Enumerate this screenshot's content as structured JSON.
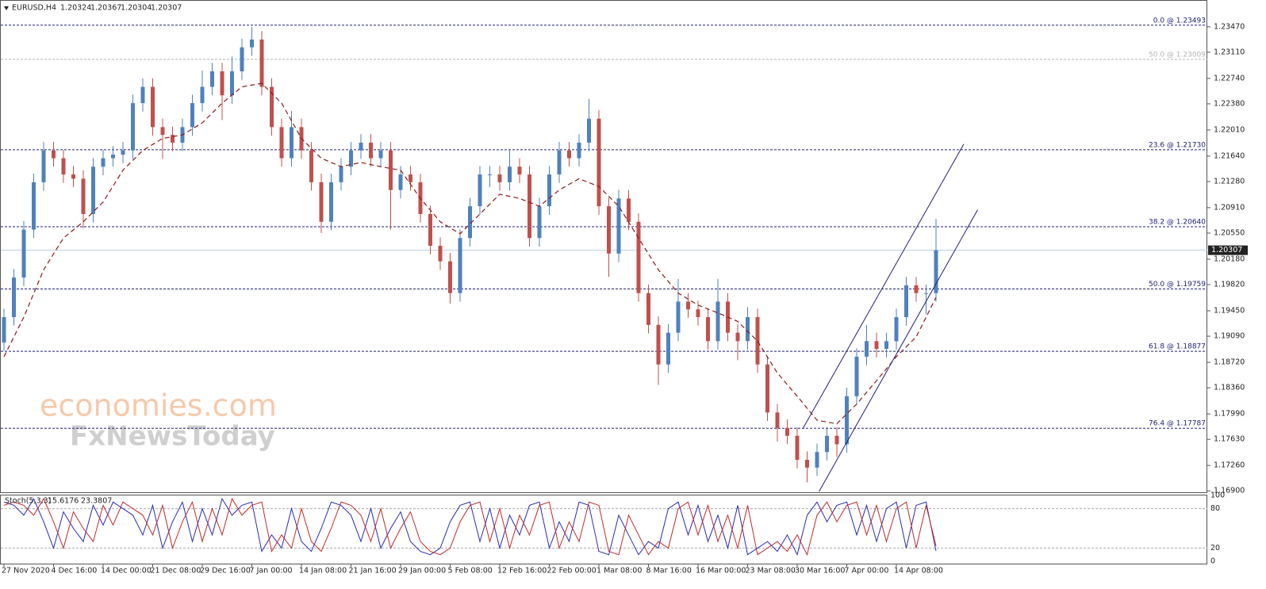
{
  "chart_data": {
    "type": "candlestick",
    "symbol": "EURUSD,H4",
    "quote": [
      1.20324,
      1.20367,
      1.20304,
      1.20307
    ],
    "up_color": "#4f81bd",
    "down_color": "#c0504d",
    "open": [
      1.19,
      1.1936,
      1.1992,
      1.206,
      1.2127,
      1.2172,
      1.2161,
      1.2138,
      1.2132,
      1.2082,
      1.2149,
      1.2161,
      1.2166,
      1.2172,
      1.2239,
      1.2262,
      1.2205,
      1.2194,
      1.2183,
      1.2205,
      1.2239,
      1.2262,
      1.2284,
      1.225,
      1.2284,
      1.2318,
      1.2329,
      1.2262,
      1.2205,
      1.2161,
      1.2205,
      1.2172,
      1.2127,
      1.2071,
      1.2127,
      1.2149,
      1.2172,
      1.2183,
      1.2161,
      1.2172,
      1.2116,
      1.2138,
      1.2127,
      1.2082,
      1.2037,
      1.2015,
      1.197,
      1.2048,
      1.2093,
      1.2138,
      1.2138,
      1.2127,
      1.2149,
      1.2138,
      1.2048,
      1.2093,
      1.2138,
      1.2172,
      1.2161,
      1.2183,
      1.2217,
      1.2093,
      1.2026,
      1.2104,
      1.2071,
      1.197,
      1.1925,
      1.1869,
      1.1914,
      1.1958,
      1.1947,
      1.1936,
      1.1902,
      1.1958,
      1.1914,
      1.1902,
      1.1936,
      1.1869,
      1.1801,
      1.1779,
      1.1768,
      1.1734,
      1.1723,
      1.1745,
      1.1768,
      1.1756,
      1.1824,
      1.188,
      1.1902,
      1.1891,
      1.1902,
      1.1936,
      1.1981,
      1.197,
      1.197
    ],
    "high": [
      1.1948,
      1.2004,
      1.2072,
      1.2139,
      1.2184,
      1.2184,
      1.2173,
      1.215,
      1.2144,
      1.2161,
      1.2173,
      1.2178,
      1.2184,
      1.2251,
      1.2274,
      1.2274,
      1.2217,
      1.2206,
      1.2217,
      1.2251,
      1.2285,
      1.2296,
      1.2296,
      1.2305,
      1.233,
      1.2347,
      1.2341,
      1.2274,
      1.2217,
      1.2228,
      1.2217,
      1.2184,
      1.2139,
      1.2139,
      1.2161,
      1.2184,
      1.2195,
      1.2195,
      1.2184,
      1.2184,
      1.215,
      1.215,
      1.2139,
      1.2094,
      1.2049,
      1.2027,
      1.206,
      1.2105,
      1.215,
      1.215,
      1.215,
      1.2172,
      1.2161,
      1.215,
      1.2105,
      1.215,
      1.2184,
      1.2184,
      1.2195,
      1.2245,
      1.2229,
      1.2105,
      1.2116,
      1.2116,
      1.2083,
      1.1982,
      1.1937,
      1.1926,
      1.199,
      1.197,
      1.1959,
      1.1948,
      1.199,
      1.197,
      1.1926,
      1.195,
      1.1948,
      1.1881,
      1.1813,
      1.1791,
      1.178,
      1.1746,
      1.1757,
      1.178,
      1.178,
      1.1836,
      1.1892,
      1.1925,
      1.1914,
      1.1914,
      1.1948,
      1.1993,
      1.1993,
      1.1982,
      1.2075
    ],
    "low": [
      1.1888,
      1.1924,
      1.198,
      1.2048,
      1.2115,
      1.2149,
      1.2126,
      1.212,
      1.2062,
      1.207,
      1.2137,
      1.2149,
      1.2154,
      1.216,
      1.2227,
      1.2193,
      1.216,
      1.2171,
      1.2171,
      1.2193,
      1.2227,
      1.225,
      1.2215,
      1.2238,
      1.2272,
      1.2306,
      1.225,
      1.2193,
      1.2149,
      1.2149,
      1.216,
      1.2115,
      1.2055,
      1.2059,
      1.2115,
      1.2137,
      1.216,
      1.2149,
      1.2149,
      1.206,
      1.2104,
      1.2115,
      1.207,
      1.2025,
      1.2003,
      1.1955,
      1.1958,
      1.2036,
      1.2081,
      1.212,
      1.2115,
      1.2115,
      1.2126,
      1.2036,
      1.2036,
      1.2081,
      1.2126,
      1.2149,
      1.2149,
      1.2171,
      1.2081,
      1.1993,
      1.2014,
      1.2059,
      1.1958,
      1.1913,
      1.184,
      1.1857,
      1.1902,
      1.1935,
      1.1924,
      1.189,
      1.189,
      1.1902,
      1.1875,
      1.189,
      1.1857,
      1.1789,
      1.176,
      1.1756,
      1.1722,
      1.1702,
      1.1711,
      1.1733,
      1.1738,
      1.1744,
      1.1812,
      1.1868,
      1.1879,
      1.1879,
      1.189,
      1.1924,
      1.1958,
      1.194,
      1.1958
    ],
    "close": [
      1.1936,
      1.1992,
      1.206,
      1.2127,
      1.2172,
      1.2161,
      1.2138,
      1.2132,
      1.2082,
      1.2149,
      1.2161,
      1.2166,
      1.2172,
      1.2239,
      1.2262,
      1.2205,
      1.2194,
      1.2183,
      1.2205,
      1.2239,
      1.2262,
      1.2284,
      1.225,
      1.2284,
      1.2318,
      1.2329,
      1.2262,
      1.2205,
      1.2161,
      1.2205,
      1.2172,
      1.2127,
      1.2071,
      1.2127,
      1.2149,
      1.2172,
      1.2183,
      1.2161,
      1.2172,
      1.2116,
      1.2138,
      1.2127,
      1.2082,
      1.2037,
      1.2015,
      1.197,
      1.2048,
      1.2093,
      1.2138,
      1.2138,
      1.2127,
      1.2149,
      1.2138,
      1.2048,
      1.2093,
      1.2138,
      1.2172,
      1.2161,
      1.2183,
      1.2217,
      1.2093,
      1.2026,
      1.2104,
      1.2071,
      1.197,
      1.1925,
      1.1869,
      1.1914,
      1.1958,
      1.1947,
      1.1936,
      1.1902,
      1.1958,
      1.1914,
      1.1902,
      1.1936,
      1.1869,
      1.1801,
      1.1779,
      1.1768,
      1.1734,
      1.1723,
      1.1745,
      1.1768,
      1.1756,
      1.1824,
      1.188,
      1.1902,
      1.1891,
      1.1902,
      1.1936,
      1.1981,
      1.197,
      1.197,
      1.20307
    ],
    "ylim": [
      1.1688,
      1.2385
    ],
    "yticks": [
      {
        "value": 1.2347,
        "label": "1.23470"
      },
      {
        "value": 1.2311,
        "label": "1.23110"
      },
      {
        "value": 1.2274,
        "label": "1.22740"
      },
      {
        "value": 1.2238,
        "label": "1.22380"
      },
      {
        "value": 1.2201,
        "label": "1.22010"
      },
      {
        "value": 1.2164,
        "label": "1.21640"
      },
      {
        "value": 1.2128,
        "label": "1.21280"
      },
      {
        "value": 1.2091,
        "label": "1.20910"
      },
      {
        "value": 1.2055,
        "label": "1.20550"
      },
      {
        "value": 1.2018,
        "label": "1.20180"
      },
      {
        "value": 1.1982,
        "label": "1.19820"
      },
      {
        "value": 1.1945,
        "label": "1.19450"
      },
      {
        "value": 1.1909,
        "label": "1.19090"
      },
      {
        "value": 1.1872,
        "label": "1.18720"
      },
      {
        "value": 1.1836,
        "label": "1.18360"
      },
      {
        "value": 1.1799,
        "label": "1.17990"
      },
      {
        "value": 1.1763,
        "label": "1.17630"
      },
      {
        "value": 1.1726,
        "label": "1.17260"
      },
      {
        "value": 1.169,
        "label": "1.16900"
      }
    ],
    "xticks": [
      {
        "value": 0,
        "label": "27 Nov 2020"
      },
      {
        "value": 5,
        "label": "4 Dec 16:00"
      },
      {
        "value": 10,
        "label": "14 Dec 00:00"
      },
      {
        "value": 15,
        "label": "21 Dec 08:00"
      },
      {
        "value": 20,
        "label": "29 Dec 16:00"
      },
      {
        "value": 25,
        "label": "7 Jan 00:00"
      },
      {
        "value": 30,
        "label": "14 Jan 08:00"
      },
      {
        "value": 35,
        "label": "21 Jan 16:00"
      },
      {
        "value": 40,
        "label": "29 Jan 00:00"
      },
      {
        "value": 45,
        "label": "5 Feb 08:00"
      },
      {
        "value": 50,
        "label": "12 Feb 16:00"
      },
      {
        "value": 55,
        "label": "22 Feb 00:00"
      },
      {
        "value": 60,
        "label": "1 Mar 08:00"
      },
      {
        "value": 65,
        "label": "8 Mar 16:00"
      },
      {
        "value": 70,
        "label": "16 Mar 00:00"
      },
      {
        "value": 75,
        "label": "23 Mar 08:00"
      },
      {
        "value": 80,
        "label": "30 Mar 16:00"
      },
      {
        "value": 85,
        "label": "7 Apr 00:00"
      },
      {
        "value": 90,
        "label": "14 Apr 08:00"
      }
    ],
    "levels": [
      {
        "value": 1.23493,
        "label": "0.0 @ 1.23493",
        "color": "#20207a"
      },
      {
        "value": 1.23009,
        "label": "50.0 @ 1.23009",
        "color": "#b4b4b4"
      },
      {
        "value": 1.2173,
        "label": "23.6 @ 1.21730",
        "color": "#20207a"
      },
      {
        "value": 1.2064,
        "label": "38.2 @ 1.20640",
        "color": "#20207a"
      },
      {
        "value": 1.19759,
        "label": "50.0 @ 1.19759",
        "color": "#20207a"
      },
      {
        "value": 1.18877,
        "label": "61.8 @ 1.18877",
        "color": "#20207a"
      },
      {
        "value": 1.17787,
        "label": "76.4 @ 1.17787",
        "color": "#20207a"
      }
    ],
    "current": 1.20307,
    "ma": {
      "color": "#8b1a1a",
      "x": [
        0,
        2,
        4,
        6,
        8,
        10,
        12,
        14,
        16,
        18,
        20,
        22,
        24,
        26,
        28,
        30,
        32,
        34,
        36,
        38,
        40,
        42,
        44,
        46,
        48,
        50,
        52,
        54,
        56,
        58,
        60,
        62,
        64,
        66,
        68,
        70,
        72,
        74,
        76,
        78,
        80,
        82,
        84,
        86,
        88,
        90,
        92,
        94
      ],
      "values": [
        1.188,
        1.1936,
        1.2003,
        1.2048,
        1.2071,
        1.2099,
        1.2144,
        1.2172,
        1.2189,
        1.2194,
        1.2211,
        1.2239,
        1.2262,
        1.2267,
        1.2239,
        1.2189,
        1.2161,
        1.2149,
        1.2155,
        1.2149,
        1.2144,
        1.2104,
        1.2071,
        1.2054,
        1.2082,
        1.211,
        1.2104,
        1.2093,
        1.2116,
        1.2132,
        1.2121,
        1.2093,
        1.2048,
        1.2003,
        1.197,
        1.1953,
        1.1942,
        1.193,
        1.1902,
        1.1857,
        1.1824,
        1.179,
        1.1785,
        1.1813,
        1.1846,
        1.188,
        1.1908,
        1.1964
      ]
    },
    "channel": [
      {
        "x": [
          80.6,
          96.8
        ],
        "y": [
          1.1779,
          1.2181
        ],
        "color": "#20207a"
      },
      {
        "x": [
          82.2,
          98.2
        ],
        "y": [
          1.1689,
          1.2088
        ],
        "color": "#20207a"
      }
    ],
    "watermark": [
      {
        "text": "economies.com",
        "color": "#f6c9aa"
      },
      {
        "text": "FxNewsToday",
        "color": "#cfcfcf"
      }
    ],
    "stoch": {
      "title": "Stoch(5,3,3)",
      "ylim": [
        0,
        100
      ],
      "yticks": [
        100,
        80,
        20,
        0
      ],
      "grid": true,
      "series": [
        {
          "color": "#2a2ab8",
          "values": [
            90,
            85,
            70,
            95,
            60,
            20,
            75,
            50,
            30,
            85,
            55,
            90,
            80,
            70,
            40,
            85,
            20,
            60,
            90,
            30,
            80,
            40,
            95,
            70,
            85,
            90,
            15,
            40,
            20,
            80,
            30,
            15,
            50,
            90,
            85,
            70,
            30,
            80,
            20,
            50,
            75,
            30,
            15,
            10,
            20,
            60,
            85,
            90,
            30,
            80,
            20,
            70,
            40,
            85,
            90,
            20,
            60,
            30,
            90,
            85,
            15,
            10,
            70,
            40,
            10,
            30,
            20,
            80,
            90,
            40,
            85,
            30,
            70,
            20,
            85,
            10,
            20,
            30,
            15,
            40,
            10,
            70,
            90,
            60,
            85,
            90,
            40,
            85,
            30,
            80,
            90,
            20,
            85,
            90,
            15.6176
          ]
        },
        {
          "color": "#c02a2a",
          "values": [
            85,
            90,
            85,
            70,
            95,
            60,
            20,
            75,
            50,
            30,
            85,
            55,
            90,
            80,
            70,
            40,
            85,
            20,
            60,
            90,
            30,
            80,
            40,
            95,
            70,
            85,
            90,
            15,
            40,
            20,
            80,
            30,
            15,
            50,
            90,
            85,
            70,
            30,
            80,
            20,
            50,
            75,
            30,
            15,
            10,
            20,
            60,
            85,
            90,
            30,
            80,
            20,
            70,
            40,
            85,
            90,
            20,
            60,
            30,
            90,
            85,
            15,
            10,
            70,
            40,
            10,
            30,
            20,
            80,
            90,
            40,
            85,
            30,
            70,
            20,
            85,
            10,
            20,
            30,
            15,
            40,
            10,
            70,
            90,
            60,
            85,
            90,
            40,
            85,
            30,
            80,
            90,
            20,
            85,
            23.3807
          ]
        }
      ]
    }
  }
}
